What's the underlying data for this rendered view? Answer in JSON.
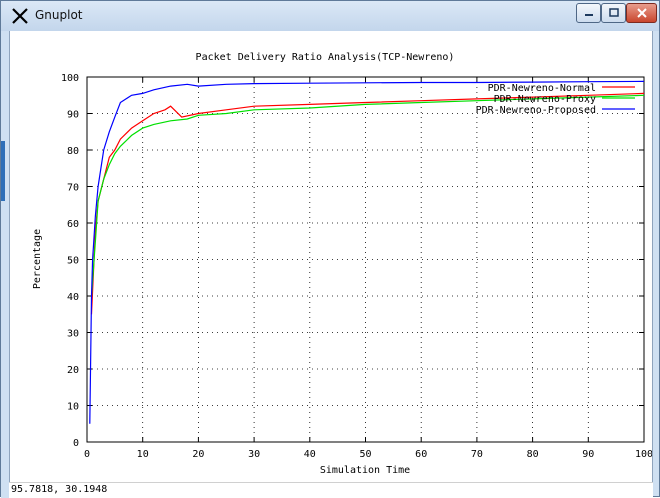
{
  "window": {
    "title": "Gnuplot"
  },
  "status_bar": {
    "coordinates": "95.7818,  30.1948"
  },
  "colors": {
    "normal": "#ff0000",
    "proxy": "#00e000",
    "proposed": "#0000ff"
  },
  "icons": [
    "x-logo-icon",
    "minimize-icon",
    "maximize-icon",
    "close-icon"
  ],
  "chart_data": {
    "type": "line",
    "title": "Packet Delivery Ratio Analysis(TCP-Newreno)",
    "xlabel": "Simulation Time",
    "ylabel": "Percentage",
    "xlim": [
      0,
      100
    ],
    "ylim": [
      0,
      100
    ],
    "xticks": [
      "0",
      "10",
      "20",
      "30",
      "40",
      "50",
      "60",
      "70",
      "80",
      "90",
      "100"
    ],
    "yticks": [
      "0",
      "10",
      "20",
      "30",
      "40",
      "50",
      "60",
      "70",
      "80",
      "90",
      "100"
    ],
    "grid": true,
    "legend_position": "top-right",
    "series": [
      {
        "name": "PDR-Newreno-Normal",
        "x": [
          0.8,
          1.5,
          2,
          3,
          4,
          5,
          6,
          8,
          10,
          12,
          14,
          15,
          17,
          20,
          25,
          30,
          40,
          50,
          60,
          70,
          80,
          90,
          100
        ],
        "y": [
          35,
          58,
          66,
          72,
          78,
          80,
          83,
          86,
          88,
          90,
          91,
          92,
          89,
          90,
          91,
          92,
          92.5,
          93,
          93.5,
          94,
          94.5,
          95,
          95.5
        ]
      },
      {
        "name": "PDR-Newreno-Proxy",
        "x": [
          0.8,
          1.5,
          2,
          3,
          4,
          5,
          6,
          8,
          10,
          12,
          15,
          18,
          20,
          25,
          30,
          40,
          50,
          60,
          70,
          80,
          90,
          100
        ],
        "y": [
          40,
          55,
          66,
          72,
          76,
          79,
          81,
          84,
          86,
          87,
          88,
          88.5,
          89.5,
          90,
          91,
          91.5,
          92.5,
          93,
          93.5,
          94,
          94.5,
          95
        ]
      },
      {
        "name": "PDR-Newreno-Proposed",
        "x": [
          0.5,
          0.8,
          1,
          1.5,
          2,
          3,
          4,
          5,
          6,
          7,
          8,
          10,
          12,
          15,
          18,
          20,
          25,
          30,
          40,
          50,
          60,
          70,
          80,
          90,
          100
        ],
        "y": [
          5,
          40,
          50,
          62,
          70,
          80,
          85,
          89,
          93,
          94,
          95,
          95.5,
          96.5,
          97.5,
          98,
          97.5,
          98,
          98.2,
          98.3,
          98.4,
          98.5,
          98.5,
          98.6,
          98.7,
          98.8
        ]
      }
    ]
  }
}
